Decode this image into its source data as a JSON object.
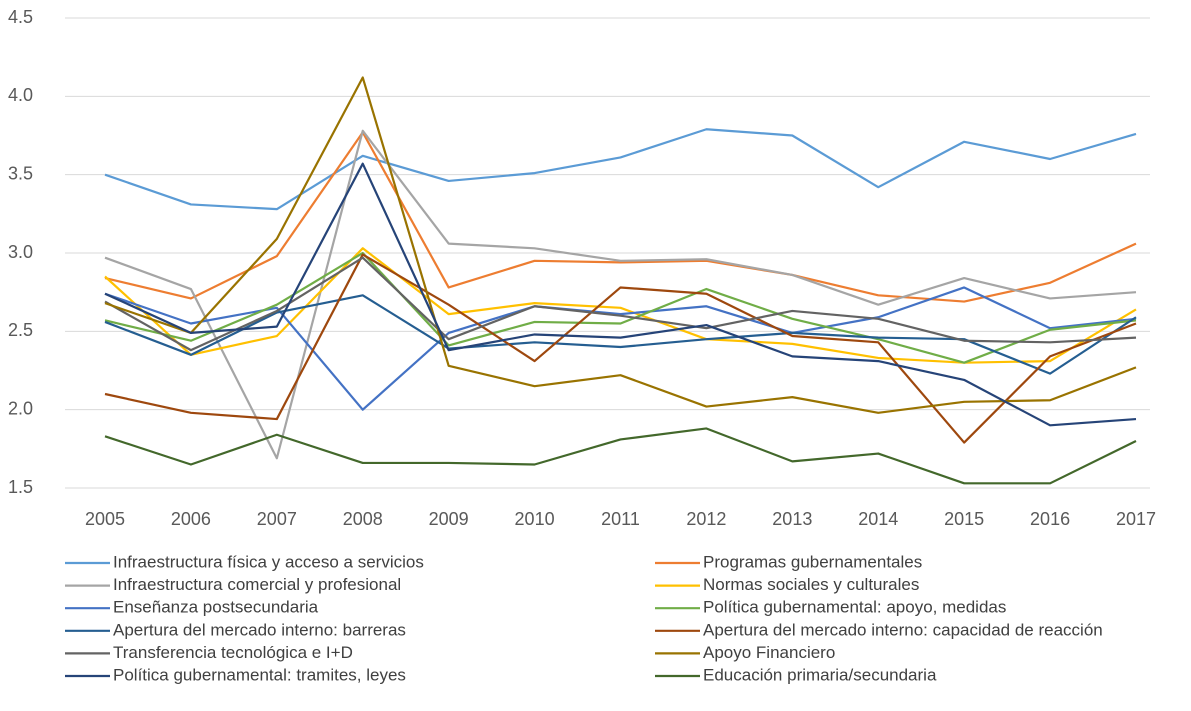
{
  "chart_data": {
    "type": "line",
    "categories": [
      "2005",
      "2006",
      "2007",
      "2008",
      "2009",
      "2010",
      "2011",
      "2012",
      "2013",
      "2014",
      "2015",
      "2016",
      "2017"
    ],
    "ylim": [
      1.5,
      4.5
    ],
    "yticks": [
      1.5,
      {
        "value": 2,
        "label": "2.0"
      },
      2.5,
      {
        "value": 3,
        "label": "3.0"
      },
      3.5,
      {
        "value": 4,
        "label": "4.0"
      },
      4.5
    ],
    "grid": true,
    "legend": "bottom",
    "series": [
      {
        "name": "Infraestructura física y acceso a servicios",
        "color": "#5b9bd5",
        "values": [
          3.5,
          3.31,
          3.28,
          3.62,
          3.46,
          3.51,
          3.61,
          3.79,
          3.75,
          3.42,
          3.71,
          3.6,
          3.76
        ]
      },
      {
        "name": "Programas gubernamentales",
        "color": "#ed7d31",
        "values": [
          2.84,
          2.71,
          2.98,
          3.77,
          2.78,
          2.95,
          2.94,
          2.95,
          2.86,
          2.73,
          2.69,
          2.81,
          3.06
        ]
      },
      {
        "name": "Infraestructura comercial y profesional",
        "color": "#a5a5a5",
        "values": [
          2.97,
          2.77,
          1.69,
          3.78,
          3.06,
          3.03,
          2.95,
          2.96,
          2.86,
          2.67,
          2.84,
          2.71,
          2.75
        ]
      },
      {
        "name": "Normas sociales y culturales",
        "color": "#ffc000",
        "values": [
          2.85,
          2.35,
          2.47,
          3.03,
          2.61,
          2.68,
          2.65,
          2.45,
          2.42,
          2.33,
          2.3,
          2.31,
          2.64
        ]
      },
      {
        "name": "Enseñanza postsecundaria",
        "color": "#4472c4",
        "values": [
          2.74,
          2.55,
          2.65,
          2.0,
          2.49,
          2.66,
          2.61,
          2.66,
          2.49,
          2.59,
          2.78,
          2.52,
          2.58
        ]
      },
      {
        "name": "Política gubernamental: apoyo, medidas",
        "color": "#70ad47",
        "values": [
          2.57,
          2.44,
          2.67,
          3.0,
          2.41,
          2.56,
          2.55,
          2.77,
          2.58,
          2.45,
          2.3,
          2.51,
          2.57
        ]
      },
      {
        "name": "Apertura del mercado interno: barreras",
        "color": "#255e91",
        "values": [
          2.56,
          2.35,
          2.62,
          2.73,
          2.39,
          2.43,
          2.4,
          2.45,
          2.49,
          2.46,
          2.45,
          2.23,
          2.59
        ]
      },
      {
        "name": "Apertura del mercado interno: capacidad de reacción",
        "color": "#9e480e",
        "values": [
          2.1,
          1.98,
          1.94,
          2.99,
          2.67,
          2.31,
          2.78,
          2.74,
          2.47,
          2.43,
          1.79,
          2.34,
          2.55
        ]
      },
      {
        "name": "Transferencia tecnológica e I+D",
        "color": "#636363",
        "values": [
          2.69,
          2.38,
          2.63,
          2.97,
          2.45,
          2.66,
          2.6,
          2.52,
          2.63,
          2.58,
          2.44,
          2.43,
          2.46
        ]
      },
      {
        "name": "Apoyo Financiero",
        "color": "#997300",
        "values": [
          2.68,
          2.49,
          3.09,
          4.12,
          2.28,
          2.15,
          2.22,
          2.02,
          2.08,
          1.98,
          2.05,
          2.06,
          2.27
        ]
      },
      {
        "name": "Política gubernamental: tramites, leyes",
        "color": "#264478",
        "values": [
          2.74,
          2.49,
          2.53,
          3.57,
          2.38,
          2.48,
          2.46,
          2.54,
          2.34,
          2.31,
          2.19,
          1.9,
          1.94
        ]
      },
      {
        "name": "Educación primaria/secundaria",
        "color": "#43682b",
        "values": [
          1.83,
          1.65,
          1.84,
          1.66,
          1.66,
          1.65,
          1.81,
          1.88,
          1.67,
          1.72,
          1.53,
          1.53,
          1.8
        ]
      }
    ]
  }
}
